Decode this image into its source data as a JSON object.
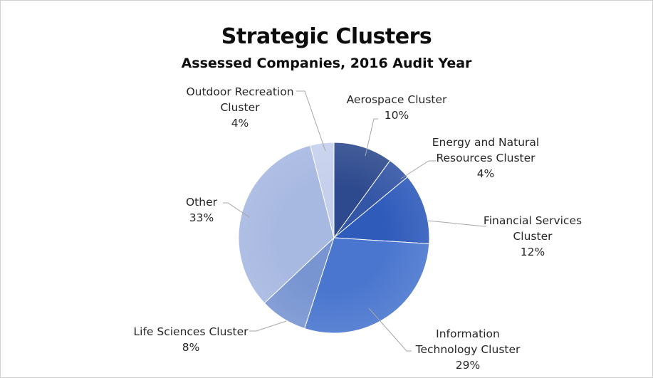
{
  "chart_data": {
    "type": "pie",
    "title": "Strategic Clusters",
    "subtitle": "Assessed Companies, 2016 Audit Year",
    "slices": [
      {
        "label_lines": [
          "Aerospace Cluster"
        ],
        "percent_label": "10%",
        "value": 10,
        "color": "#2e4a8e"
      },
      {
        "label_lines": [
          "Energy and Natural",
          "Resources Cluster"
        ],
        "percent_label": "4%",
        "value": 4,
        "color": "#3456a6"
      },
      {
        "label_lines": [
          "Financial Services",
          "Cluster"
        ],
        "percent_label": "12%",
        "value": 12,
        "color": "#2f5bbb"
      },
      {
        "label_lines": [
          "Information",
          "Technology Cluster"
        ],
        "percent_label": "29%",
        "value": 29,
        "color": "#4a76cf"
      },
      {
        "label_lines": [
          "Life Sciences Cluster"
        ],
        "percent_label": "8%",
        "value": 8,
        "color": "#7895d2"
      },
      {
        "label_lines": [
          "Other"
        ],
        "percent_label": "33%",
        "value": 33,
        "color": "#a7b8e1"
      },
      {
        "label_lines": [
          "Outdoor Recreation",
          "Cluster"
        ],
        "percent_label": "4%",
        "value": 4,
        "color": "#c6d0ec"
      }
    ]
  }
}
